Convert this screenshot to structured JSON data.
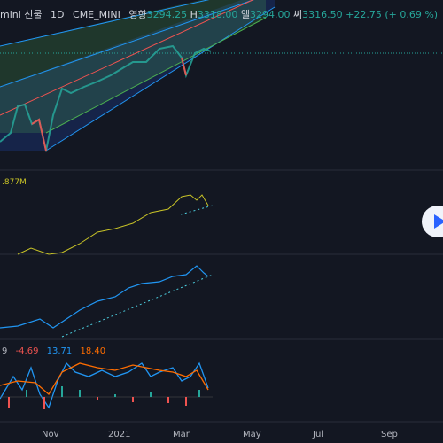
{
  "header": {
    "symbol": "mini 선물",
    "interval": "1D",
    "exchange": "CME_MINI",
    "open_label": "영향",
    "open": "3294.25",
    "high_label": "H",
    "high": "3318.00",
    "low_label": "엘",
    "low": "3294.00",
    "close_label": "씨",
    "close": "3316.50",
    "change": "+22.75 (+ 0.69 %)"
  },
  "volume_label": ".877M",
  "macd": {
    "param": "9",
    "macd": "-4.69",
    "signal": "13.71",
    "hist": "18.40"
  },
  "x_axis": [
    "Nov",
    "2021",
    "Mar",
    "May",
    "Jul",
    "Sep"
  ],
  "colors": {
    "up": "#26a69a",
    "down": "#ef5350",
    "accent": "#2962ff",
    "volume_line": "#c9c427",
    "obv_line": "#2196f3",
    "macd_blue": "#2196f3",
    "macd_orange": "#ff6d00",
    "dotted": "#4dd0e1"
  }
}
